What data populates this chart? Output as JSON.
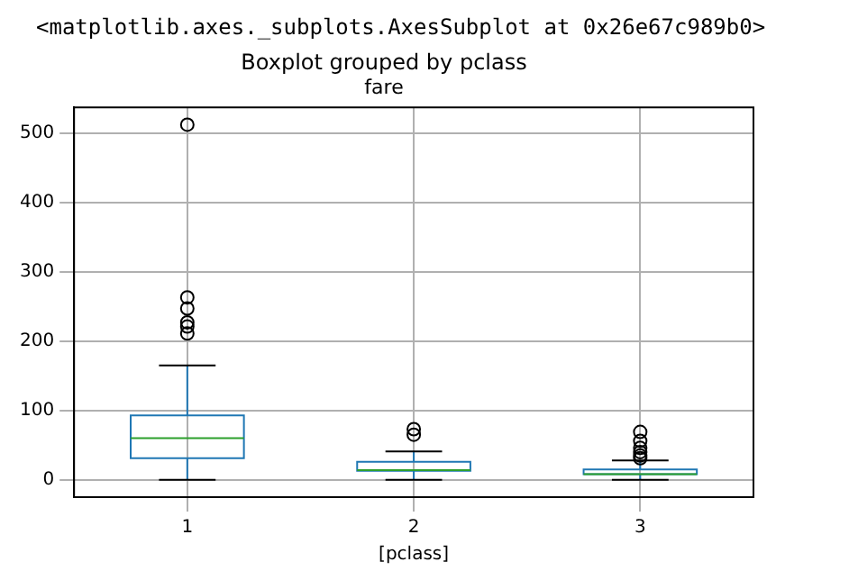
{
  "chart_data": {
    "type": "box",
    "title": "Boxplot grouped by pclass",
    "subtitle": "fare",
    "xlabel": "[pclass]",
    "annotations": [
      "<matplotlib.axes._subplots.AxesSubplot at 0x26e67c989b0>"
    ],
    "categories": [
      "1",
      "2",
      "3"
    ],
    "boxes": [
      {
        "low": 0,
        "q1": 31,
        "median": 60,
        "q3": 93,
        "high": 165,
        "outliers": [
          512,
          263,
          247,
          227,
          221,
          211
        ]
      },
      {
        "low": 0,
        "q1": 13,
        "median": 14,
        "q3": 26,
        "high": 41,
        "outliers": [
          65,
          73
        ]
      },
      {
        "low": 0,
        "q1": 8,
        "median": 8,
        "q3": 15,
        "high": 28,
        "outliers": [
          31,
          35,
          40,
          46,
          56,
          69
        ]
      }
    ],
    "color": "#1f77b4",
    "ylim": [
      -25,
      537
    ],
    "yticks": [
      0,
      100,
      200,
      300,
      400,
      500
    ],
    "grid": true
  }
}
